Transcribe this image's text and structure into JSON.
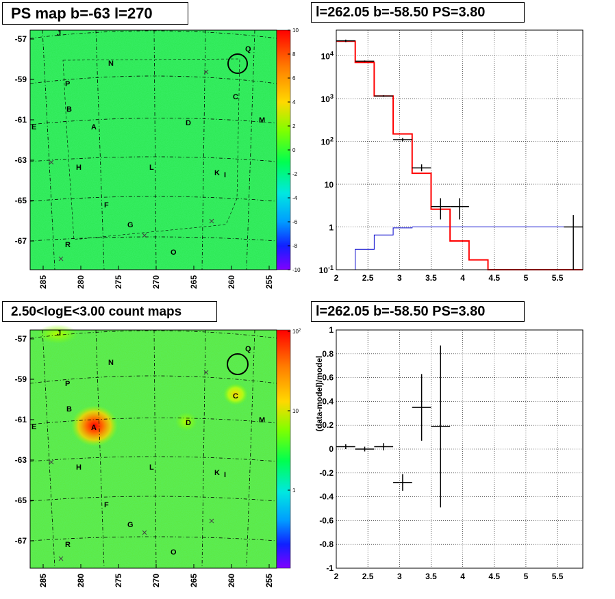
{
  "panels": {
    "tl_title": "PS map b=-63 l=270",
    "tr_title": "l=262.05 b=-58.50 PS=3.80",
    "bl_title": "2.50<logE<3.00 count maps",
    "br_title": "l=262.05 b=-58.50 PS=3.80"
  },
  "colors": {
    "map_bg": "#22e85a",
    "histogram_model": "#ff0000",
    "background_model": "#0000cc",
    "data": "#000000",
    "grid": "#000000"
  },
  "chart_data": [
    {
      "id": "ps-map",
      "type": "heatmap",
      "title": "PS map b=-63 l=270",
      "x_ticks": [
        "285",
        "280",
        "275",
        "270",
        "265",
        "260",
        "255"
      ],
      "y_ticks": [
        "-57",
        "-59",
        "-61",
        "-63",
        "-65",
        "-67"
      ],
      "colorbar_ticks": [
        "10",
        "8",
        "6",
        "4",
        "2",
        "0",
        "-2",
        "-4",
        "-6",
        "-8",
        "-10"
      ],
      "zlim": [
        -10,
        10
      ],
      "source_labels": [
        "J",
        "Q",
        "N",
        "P",
        "C",
        "B",
        "D",
        "M",
        "E",
        "A",
        "H",
        "L",
        "K",
        "I",
        "F",
        "G",
        "R",
        "O"
      ]
    },
    {
      "id": "spectrum",
      "type": "line",
      "title": "l=262.05 b=-58.50 PS=3.80",
      "x_ticks": [
        "2",
        "2.5",
        "3",
        "3.5",
        "4",
        "4.5",
        "5",
        "5.5"
      ],
      "y_ticks": [
        "10^4",
        "10^3",
        "10^2",
        "10",
        "1",
        "10^-1"
      ],
      "xlim": [
        2,
        5.9
      ],
      "ylim": [
        0.1,
        40000
      ],
      "yscale": "log",
      "grid": true,
      "series": [
        {
          "role": "total-model-histogram",
          "bin_edges": [
            2.0,
            2.3,
            2.6,
            2.9,
            3.2,
            3.5,
            3.8,
            4.1,
            4.4,
            5.9
          ],
          "values": [
            22000,
            7000,
            1150,
            150,
            18,
            2.6,
            0.47,
            0.17,
            0.1
          ]
        },
        {
          "role": "background-model-histogram",
          "bin_edges": [
            2.0,
            2.3,
            2.6,
            2.9,
            3.2,
            5.9
          ],
          "values": [
            0.1,
            0.3,
            0.65,
            0.95,
            1.0
          ]
        },
        {
          "role": "data-points",
          "points": [
            {
              "x": 2.15,
              "y": 22500,
              "xerr": 0.15,
              "ylo": 21000,
              "yhi": 24000
            },
            {
              "x": 2.45,
              "y": 7500,
              "xerr": 0.15,
              "ylo": 7200,
              "yhi": 7800
            },
            {
              "x": 2.75,
              "y": 1150,
              "xerr": 0.15,
              "ylo": 1100,
              "yhi": 1200
            },
            {
              "x": 3.05,
              "y": 110,
              "xerr": 0.15,
              "ylo": 100,
              "yhi": 120
            },
            {
              "x": 3.35,
              "y": 24,
              "xerr": 0.15,
              "ylo": 20,
              "yhi": 29
            },
            {
              "x": 3.65,
              "y": 3.0,
              "xerr": 0.15,
              "ylo": 1.5,
              "yhi": 4.7
            },
            {
              "x": 3.95,
              "y": 3.0,
              "xerr": 0.15,
              "ylo": 1.5,
              "yhi": 4.7
            },
            {
              "x": 5.75,
              "y": 1.0,
              "xerr": 0.15,
              "ylo": 0.1,
              "yhi": 1.9
            }
          ]
        }
      ]
    },
    {
      "id": "count-map",
      "type": "heatmap",
      "title": "2.50<logE<3.00 count maps",
      "x_ticks": [
        "285",
        "280",
        "275",
        "270",
        "265",
        "260",
        "255"
      ],
      "y_ticks": [
        "-57",
        "-59",
        "-61",
        "-63",
        "-65",
        "-67"
      ],
      "colorbar_ticks": [
        "10^2",
        "10",
        "1"
      ],
      "zscale": "log",
      "source_labels": [
        "J",
        "Q",
        "N",
        "P",
        "C",
        "B",
        "D",
        "M",
        "E",
        "A",
        "H",
        "L",
        "K",
        "I",
        "F",
        "G",
        "R",
        "O"
      ]
    },
    {
      "id": "residuals",
      "type": "scatter",
      "title": "l=262.05 b=-58.50 PS=3.80",
      "ylabel": "(data-model)/model",
      "x_ticks": [
        "2",
        "2.5",
        "3",
        "3.5",
        "4",
        "4.5",
        "5",
        "5.5"
      ],
      "y_ticks": [
        "1",
        "0.8",
        "0.6",
        "0.4",
        "0.2",
        "0",
        "-0.2",
        "-0.4",
        "-0.6",
        "-0.8",
        "-1"
      ],
      "xlim": [
        2,
        5.9
      ],
      "ylim": [
        -1,
        1
      ],
      "grid": true,
      "points": [
        {
          "x": 2.15,
          "y": 0.02,
          "xerr": 0.15,
          "yerr": 0.02
        },
        {
          "x": 2.45,
          "y": 0.0,
          "xerr": 0.15,
          "yerr": 0.02
        },
        {
          "x": 2.75,
          "y": 0.02,
          "xerr": 0.15,
          "yerr": 0.03
        },
        {
          "x": 3.05,
          "y": -0.28,
          "xerr": 0.15,
          "yerr": 0.07
        },
        {
          "x": 3.35,
          "y": 0.35,
          "xerr": 0.15,
          "yerr": 0.28
        },
        {
          "x": 3.65,
          "y": 0.19,
          "xerr": 0.15,
          "yerr": 0.68
        }
      ]
    }
  ]
}
